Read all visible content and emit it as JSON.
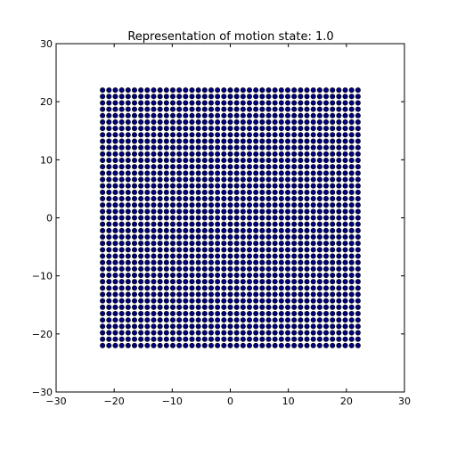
{
  "chart_data": {
    "type": "scatter",
    "title": "Representation of motion state: 1.0",
    "xlabel": "",
    "ylabel": "",
    "xlim": [
      -30,
      30
    ],
    "ylim": [
      -30,
      30
    ],
    "xticks": [
      -30,
      -20,
      -10,
      0,
      10,
      20,
      30
    ],
    "yticks": [
      -30,
      -20,
      -10,
      0,
      10,
      20,
      30
    ],
    "xtick_labels": [
      "−30",
      "−20",
      "−10",
      "0",
      "10",
      "20",
      "30"
    ],
    "ytick_labels": [
      "−30",
      "−20",
      "−10",
      "0",
      "10",
      "20",
      "30"
    ],
    "grid": false,
    "legend": "none",
    "marker_color": "#00007f",
    "marker_edge_color": "#000000",
    "points": {
      "x_values": [
        -22,
        -20.9,
        -19.8,
        -18.7,
        -17.6,
        -16.5,
        -15.4,
        -14.3,
        -13.2,
        -12.1,
        -11,
        -9.9,
        -8.8,
        -7.7,
        -6.6,
        -5.5,
        -4.4,
        -3.3,
        -2.2,
        -1.1,
        0,
        1.1,
        2.2,
        3.3,
        4.4,
        5.5,
        6.6,
        7.7,
        8.8,
        9.9,
        11,
        12.1,
        13.2,
        14.3,
        15.4,
        16.5,
        17.6,
        18.7,
        19.8,
        20.9,
        22
      ],
      "y_values": [
        -22,
        -20.9,
        -19.8,
        -18.7,
        -17.6,
        -16.5,
        -15.4,
        -14.3,
        -13.2,
        -12.1,
        -11,
        -9.9,
        -8.8,
        -7.7,
        -6.6,
        -5.5,
        -4.4,
        -3.3,
        -2.2,
        -1.1,
        0,
        1.1,
        2.2,
        3.3,
        4.4,
        5.5,
        6.6,
        7.7,
        8.8,
        9.9,
        11,
        12.1,
        13.2,
        14.3,
        15.4,
        16.5,
        17.6,
        18.7,
        19.8,
        20.9,
        22
      ],
      "arrangement": "grid (every x paired with every y)"
    }
  }
}
